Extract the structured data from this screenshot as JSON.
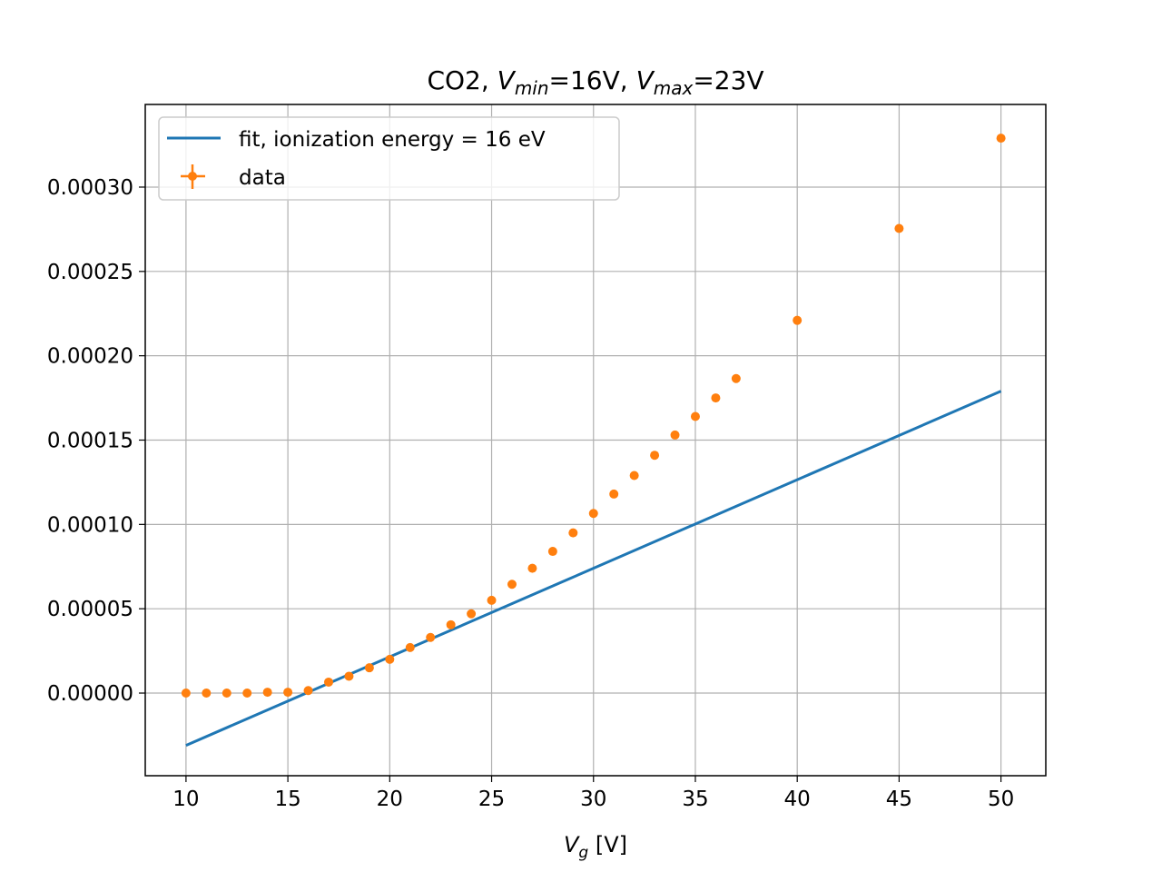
{
  "chart_data": {
    "type": "scatter",
    "title": {
      "prefix": "CO2, ",
      "vmin_symbol": "V",
      "vmin_sub": "min",
      "vmin_value": "=16V, ",
      "vmax_symbol": "V",
      "vmax_sub": "max",
      "vmax_value": "=23V"
    },
    "xlabel": {
      "symbol": "V",
      "sub": "g",
      "unit": " [V]"
    },
    "ylabel": "",
    "xlim": [
      8,
      52.2
    ],
    "ylim": [
      -4.9e-05,
      0.000349
    ],
    "xticks": [
      10,
      15,
      20,
      25,
      30,
      35,
      40,
      45,
      50
    ],
    "xtick_labels": [
      "10",
      "15",
      "20",
      "25",
      "30",
      "35",
      "40",
      "45",
      "50"
    ],
    "yticks": [
      0,
      5e-05,
      0.0001,
      0.00015,
      0.0002,
      0.00025,
      0.0003
    ],
    "ytick_labels": [
      "0.00000",
      "0.00005",
      "0.00010",
      "0.00015",
      "0.00020",
      "0.00025",
      "0.00030"
    ],
    "grid": true,
    "legend_position": "top-left",
    "series": [
      {
        "name": "fit, ionization energy = 16 eV",
        "kind": "line",
        "color": "#1f77b4",
        "x": [
          10,
          50
        ],
        "y": [
          -3.1e-05,
          0.000179
        ]
      },
      {
        "name": "data",
        "kind": "errorbar-points",
        "color": "#ff7f0e",
        "x": [
          10,
          11,
          12,
          13,
          14,
          15,
          16,
          17,
          18,
          19,
          20,
          21,
          22,
          23,
          24,
          25,
          26,
          27,
          28,
          29,
          30,
          31,
          32,
          33,
          34,
          35,
          36,
          37,
          40,
          45,
          50
        ],
        "y": [
          0,
          0,
          0,
          0,
          5e-07,
          5e-07,
          1.5e-06,
          6.5e-06,
          1e-05,
          1.5e-05,
          2e-05,
          2.7e-05,
          3.3e-05,
          4.05e-05,
          4.7e-05,
          5.5e-05,
          6.45e-05,
          7.4e-05,
          8.4e-05,
          9.5e-05,
          0.0001065,
          0.000118,
          0.000129,
          0.000141,
          0.000153,
          0.000164,
          0.000175,
          0.0001865,
          0.000221,
          0.0002755,
          0.000329
        ]
      }
    ]
  }
}
